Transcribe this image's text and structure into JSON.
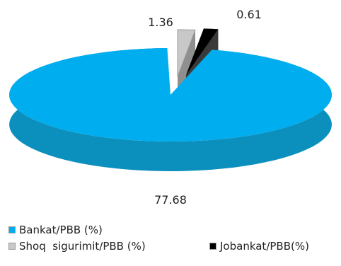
{
  "chart_data": {
    "type": "pie",
    "style": "3d-exploded",
    "slices": [
      {
        "name": "Bankat/PBB (%)",
        "value": 77.68,
        "label": "77.68",
        "color": "#00aeef",
        "side_color": "#0b8fbd"
      },
      {
        "name": "Shoq  sigurimit/PBB (%)",
        "value": 1.36,
        "label": "1.36",
        "color": "#c8c8c8",
        "side_color": "#8f8f8f"
      },
      {
        "name": "Jobankat/PBB(%)",
        "value": 0.61,
        "label": "0.61",
        "color": "#000000",
        "side_color": "#3a3a3a"
      }
    ],
    "legend_position": "bottom"
  }
}
